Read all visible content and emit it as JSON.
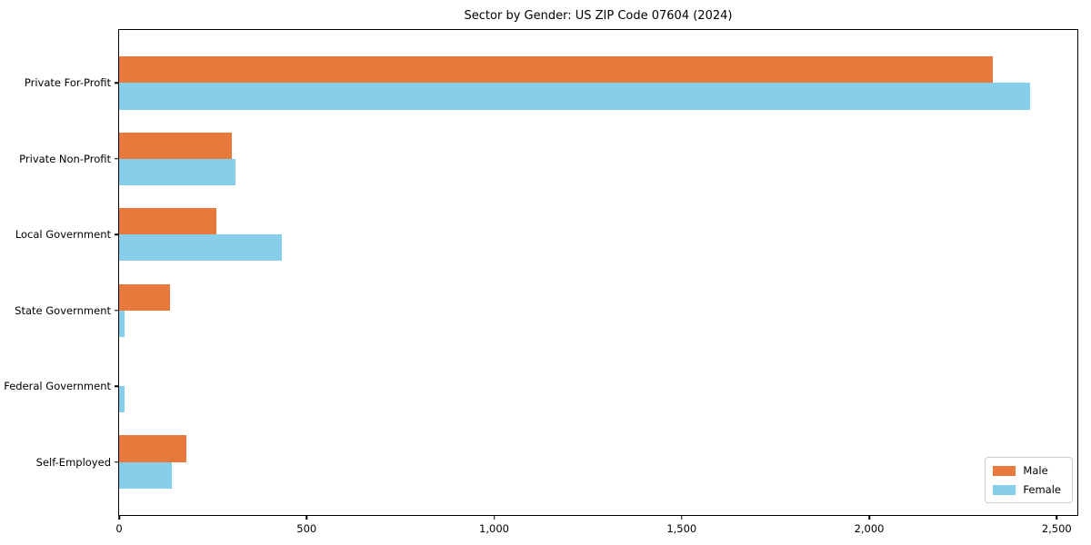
{
  "chart_data": {
    "type": "bar",
    "orientation": "horizontal",
    "title": "Sector by Gender: US ZIP Code 07604 (2024)",
    "categories": [
      "Private For-Profit",
      "Private Non-Profit",
      "Local Government",
      "State Government",
      "Federal Government",
      "Self-Employed"
    ],
    "series": [
      {
        "name": "Male",
        "color": "#e8793d",
        "values": [
          2330,
          300,
          260,
          135,
          0,
          180
        ]
      },
      {
        "name": "Female",
        "color": "#87ceeb",
        "values": [
          2430,
          310,
          435,
          15,
          15,
          140
        ]
      }
    ],
    "xlim": [
      0,
      2555
    ],
    "xticks": {
      "values": [
        0,
        500,
        1000,
        1500,
        2000,
        2500
      ],
      "labels": [
        "0",
        "500",
        "1,000",
        "1,500",
        "2,000",
        "2,500"
      ]
    },
    "xlabel": "",
    "ylabel": "",
    "grid": false,
    "legend_position": "lower right",
    "bar_height_units": 0.35,
    "category_margin_units": 0.7,
    "axis_color": "#000000",
    "background_color": "#ffffff",
    "legend_border_color": "#cccccc"
  }
}
